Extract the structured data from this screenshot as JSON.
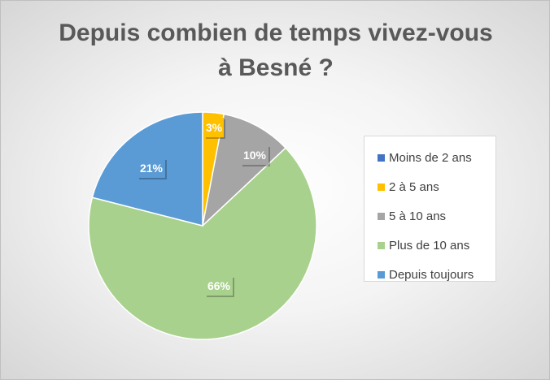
{
  "chart_data": {
    "type": "pie",
    "title_lines": [
      "Depuis combien de temps vivez-vous",
      "à Besné ?"
    ],
    "categories": [
      "Moins de 2 ans",
      "2 à 5 ans",
      "5 à 10 ans",
      "Plus de 10 ans",
      "Depuis toujours"
    ],
    "values": [
      0,
      3,
      10,
      66,
      21
    ],
    "data_labels": [
      "",
      "3%",
      "10%",
      "66%",
      "21%"
    ],
    "colors": [
      "#4472C4",
      "#FFC000",
      "#A5A5A5",
      "#A9D18E",
      "#5B9BD5"
    ],
    "legend_position": "right",
    "start_angle": "12 o'clock, clockwise"
  }
}
